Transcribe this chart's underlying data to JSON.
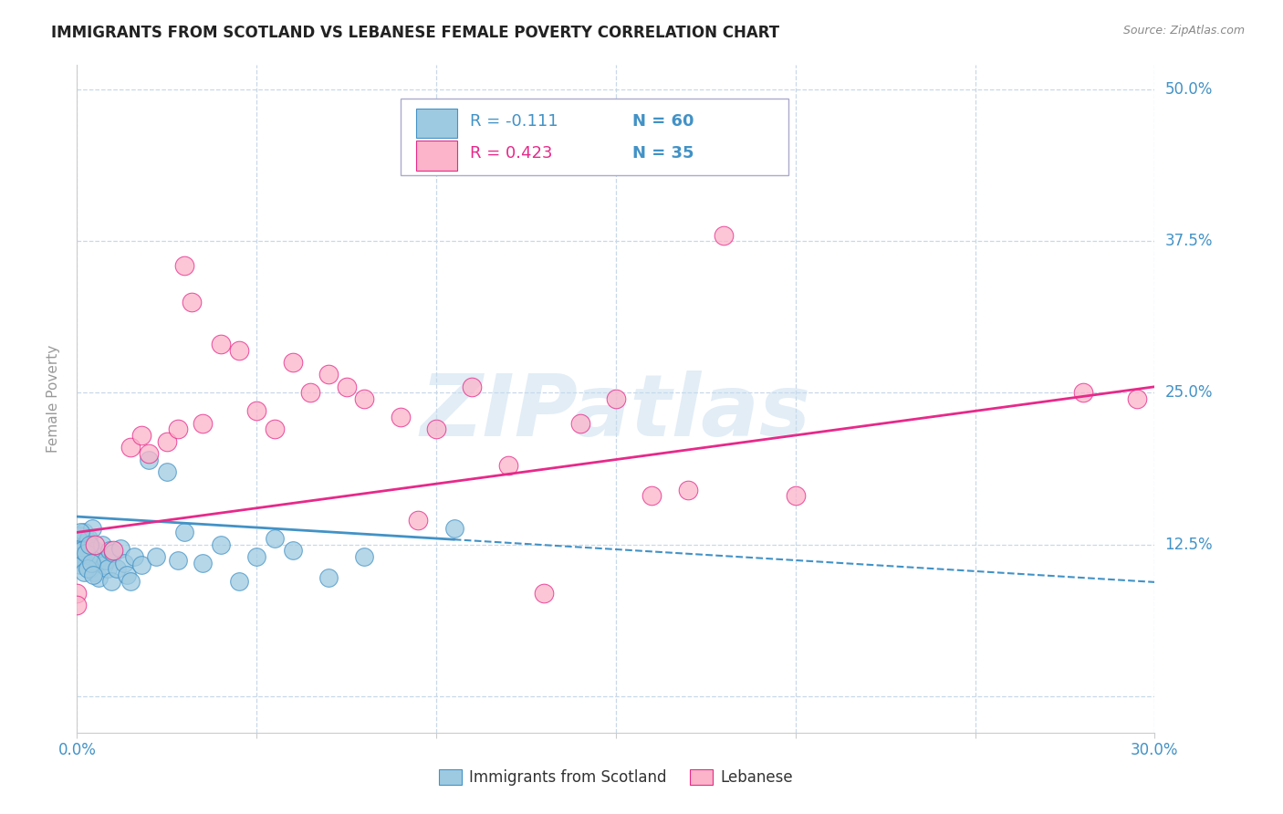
{
  "title": "IMMIGRANTS FROM SCOTLAND VS LEBANESE FEMALE POVERTY CORRELATION CHART",
  "source": "Source: ZipAtlas.com",
  "xlim": [
    0.0,
    30.0
  ],
  "ylim": [
    -3.0,
    52.0
  ],
  "legend_r1": "R = -0.111",
  "legend_n1": "N = 60",
  "legend_r2": "R = 0.423",
  "legend_n2": "N = 35",
  "scatter_blue": [
    [
      0.05,
      12.8
    ],
    [
      0.07,
      13.2
    ],
    [
      0.1,
      11.8
    ],
    [
      0.12,
      12.0
    ],
    [
      0.15,
      11.5
    ],
    [
      0.18,
      11.0
    ],
    [
      0.2,
      13.5
    ],
    [
      0.22,
      12.5
    ],
    [
      0.25,
      11.2
    ],
    [
      0.28,
      10.8
    ],
    [
      0.3,
      12.8
    ],
    [
      0.32,
      13.0
    ],
    [
      0.35,
      11.5
    ],
    [
      0.38,
      10.5
    ],
    [
      0.4,
      12.2
    ],
    [
      0.42,
      13.8
    ],
    [
      0.45,
      11.8
    ],
    [
      0.48,
      10.2
    ],
    [
      0.5,
      12.0
    ],
    [
      0.55,
      11.0
    ],
    [
      0.6,
      9.8
    ],
    [
      0.65,
      11.5
    ],
    [
      0.7,
      12.5
    ],
    [
      0.75,
      10.8
    ],
    [
      0.8,
      11.2
    ],
    [
      0.85,
      10.5
    ],
    [
      0.9,
      12.0
    ],
    [
      0.95,
      9.5
    ],
    [
      1.0,
      11.8
    ],
    [
      1.1,
      10.5
    ],
    [
      1.2,
      12.2
    ],
    [
      1.3,
      11.0
    ],
    [
      1.4,
      10.0
    ],
    [
      1.5,
      9.5
    ],
    [
      1.6,
      11.5
    ],
    [
      1.8,
      10.8
    ],
    [
      2.0,
      19.5
    ],
    [
      2.2,
      11.5
    ],
    [
      2.5,
      18.5
    ],
    [
      2.8,
      11.2
    ],
    [
      0.05,
      11.5
    ],
    [
      0.08,
      10.8
    ],
    [
      0.1,
      13.5
    ],
    [
      0.15,
      12.0
    ],
    [
      0.2,
      10.2
    ],
    [
      0.25,
      11.8
    ],
    [
      0.3,
      10.5
    ],
    [
      0.35,
      12.5
    ],
    [
      0.4,
      11.0
    ],
    [
      0.45,
      10.0
    ],
    [
      3.0,
      13.5
    ],
    [
      3.5,
      11.0
    ],
    [
      4.0,
      12.5
    ],
    [
      4.5,
      9.5
    ],
    [
      5.0,
      11.5
    ],
    [
      5.5,
      13.0
    ],
    [
      6.0,
      12.0
    ],
    [
      7.0,
      9.8
    ],
    [
      8.0,
      11.5
    ],
    [
      10.5,
      13.8
    ]
  ],
  "scatter_pink": [
    [
      0.0,
      8.5
    ],
    [
      0.0,
      7.5
    ],
    [
      0.5,
      12.5
    ],
    [
      1.0,
      12.0
    ],
    [
      1.5,
      20.5
    ],
    [
      1.8,
      21.5
    ],
    [
      2.0,
      20.0
    ],
    [
      2.5,
      21.0
    ],
    [
      2.8,
      22.0
    ],
    [
      3.0,
      35.5
    ],
    [
      3.2,
      32.5
    ],
    [
      3.5,
      22.5
    ],
    [
      4.0,
      29.0
    ],
    [
      4.5,
      28.5
    ],
    [
      5.0,
      23.5
    ],
    [
      5.5,
      22.0
    ],
    [
      6.0,
      27.5
    ],
    [
      6.5,
      25.0
    ],
    [
      7.0,
      26.5
    ],
    [
      7.5,
      25.5
    ],
    [
      8.0,
      24.5
    ],
    [
      9.0,
      23.0
    ],
    [
      9.5,
      14.5
    ],
    [
      10.0,
      22.0
    ],
    [
      11.0,
      25.5
    ],
    [
      12.0,
      19.0
    ],
    [
      13.0,
      8.5
    ],
    [
      14.0,
      22.5
    ],
    [
      15.0,
      24.5
    ],
    [
      16.0,
      16.5
    ],
    [
      17.0,
      17.0
    ],
    [
      18.0,
      38.0
    ],
    [
      20.0,
      16.5
    ],
    [
      28.0,
      25.0
    ],
    [
      29.5,
      24.5
    ]
  ],
  "trend_blue_y_start": 14.8,
  "trend_blue_slope": -0.18,
  "trend_blue_solid_end": 10.5,
  "trend_pink_y_start": 13.5,
  "trend_pink_slope": 0.4,
  "color_blue": "#9ecae1",
  "color_blue_line": "#4292c6",
  "color_pink": "#fbb4c9",
  "color_pink_line": "#e7298a",
  "bg_color": "#ffffff",
  "grid_color": "#c8d8e8",
  "axis_tick_color": "#4292c6",
  "ylabel_color": "#999999",
  "watermark_text": "ZIPatlas",
  "watermark_color": "#c6dcef",
  "yticks": [
    0.0,
    12.5,
    25.0,
    37.5,
    50.0
  ],
  "xticks": [
    0,
    5,
    10,
    15,
    20,
    25,
    30
  ]
}
